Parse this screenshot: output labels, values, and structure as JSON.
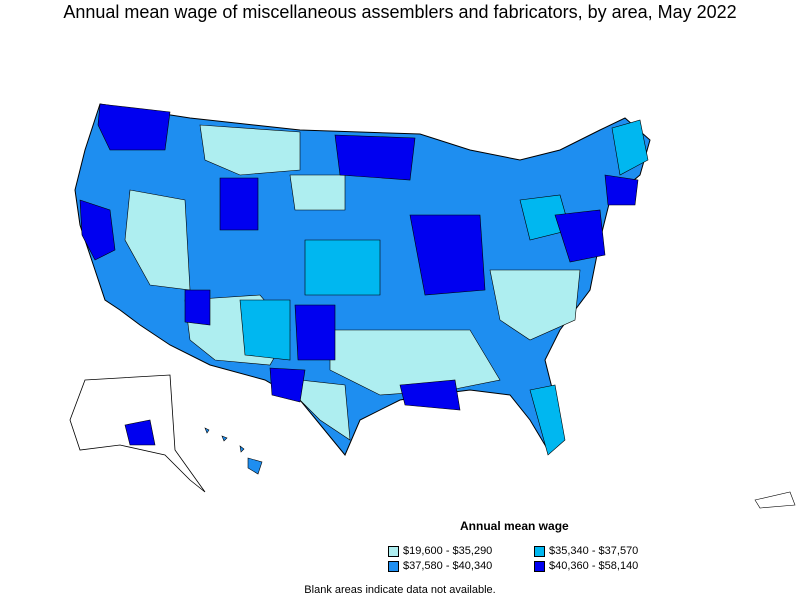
{
  "title": "Annual mean wage of miscellaneous assemblers and fabricators, by area, May 2022",
  "legend": {
    "title": "Annual mean wage",
    "items": [
      {
        "label": "$19,600 - $35,290",
        "color": "#aeeef0"
      },
      {
        "label": "$35,340 - $37,570",
        "color": "#00b7f0"
      },
      {
        "label": "$37,580 - $40,340",
        "color": "#1e8ef0"
      },
      {
        "label": "$40,360 - $58,140",
        "color": "#0000f0"
      }
    ]
  },
  "footnote": "Blank areas indicate data not available."
}
